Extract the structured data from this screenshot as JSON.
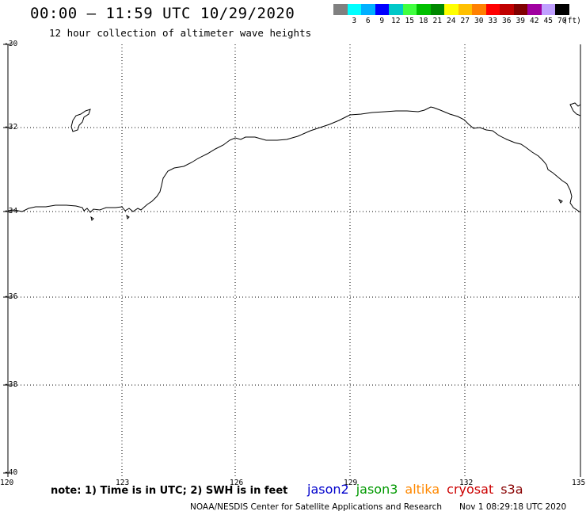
{
  "header": {
    "title": "00:00 – 11:59 UTC 10/29/2020",
    "subtitle": "12 hour collection of altimeter wave heights"
  },
  "legend_scale": {
    "unit": "(ft)",
    "swatches": [
      {
        "label": "",
        "color": "#808080"
      },
      {
        "label": "3",
        "color": "#00ffff"
      },
      {
        "label": "6",
        "color": "#00b0ff"
      },
      {
        "label": "9",
        "color": "#0000ff"
      },
      {
        "label": "12",
        "color": "#00c8c8"
      },
      {
        "label": "15",
        "color": "#40ff40"
      },
      {
        "label": "18",
        "color": "#00c000"
      },
      {
        "label": "21",
        "color": "#008800"
      },
      {
        "label": "24",
        "color": "#ffff00"
      },
      {
        "label": "27",
        "color": "#ffc000"
      },
      {
        "label": "30",
        "color": "#ff8000"
      },
      {
        "label": "33",
        "color": "#ff0000"
      },
      {
        "label": "36",
        "color": "#c00000"
      },
      {
        "label": "39",
        "color": "#800000"
      },
      {
        "label": "42",
        "color": "#a000a0"
      },
      {
        "label": "45",
        "color": "#c0a0ff"
      },
      {
        "label": "70",
        "color": "#000000"
      }
    ]
  },
  "map": {
    "lat_labels": [
      "-30",
      "-32",
      "-34",
      "-36",
      "-38",
      "-40"
    ],
    "lon_labels": [
      "120",
      "123",
      "126",
      "129",
      "132",
      "135"
    ]
  },
  "note": "note: 1) Time is in UTC; 2) SWH is in feet",
  "satellites": [
    {
      "name": "jason2",
      "color": "#0000cc"
    },
    {
      "name": "jason3",
      "color": "#009900"
    },
    {
      "name": "altika",
      "color": "#ff8800"
    },
    {
      "name": "cryosat",
      "color": "#cc0000"
    },
    {
      "name": "s3a",
      "color": "#880000"
    }
  ],
  "footer": {
    "credit": "NOAA/NESDIS Center for Satellite Applications and Research",
    "timestamp": "Nov  1 08:29:18 UTC 2020"
  }
}
